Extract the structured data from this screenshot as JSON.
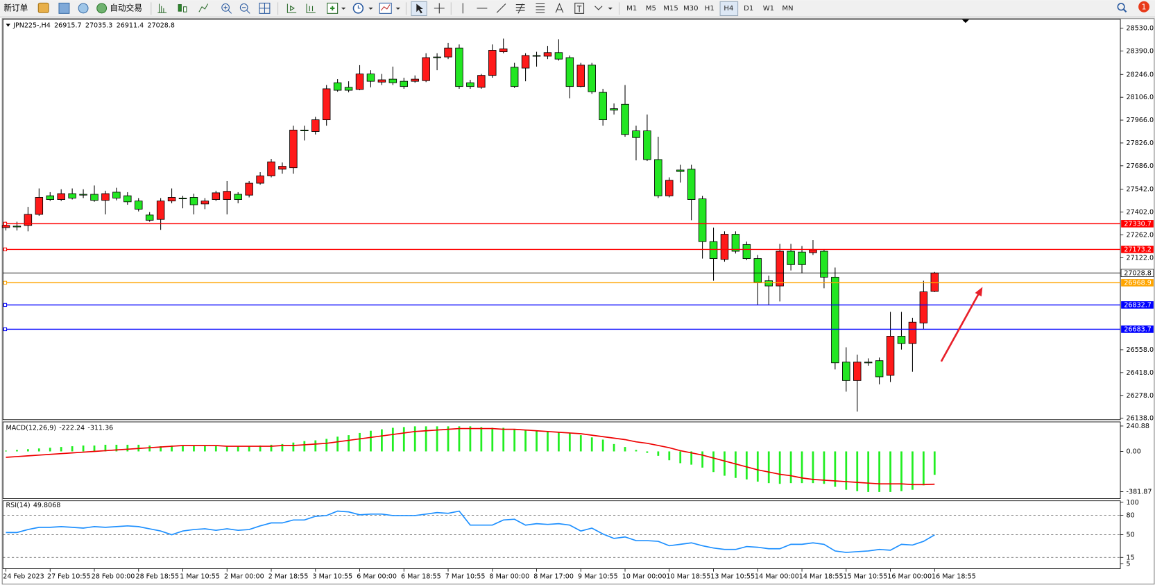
{
  "toolbar": {
    "new_order": "新订单",
    "auto_trading": "自动交易",
    "timeframes": [
      "M1",
      "M5",
      "M15",
      "M30",
      "H1",
      "H4",
      "D1",
      "W1",
      "MN"
    ],
    "notifications": 1
  },
  "chart_data": [
    {
      "type": "candlestick",
      "symbol": "JPN225-,H4",
      "up_color": "#ff1a1a",
      "down_color": "#22e622",
      "categories": [
        "24 Feb 2023",
        null,
        null,
        null,
        "27 Feb 10:55",
        null,
        null,
        null,
        "28 Feb 00:00",
        null,
        null,
        null,
        "28 Feb 18:55",
        null,
        null,
        null,
        "1 Mar 10:55",
        null,
        null,
        null,
        "2 Mar 00:00",
        null,
        null,
        null,
        "2 Mar 18:55",
        null,
        null,
        null,
        "3 Mar 10:55",
        null,
        null,
        null,
        "6 Mar 00:00",
        null,
        null,
        null,
        "6 Mar 18:55",
        null,
        null,
        null,
        "7 Mar 10:55",
        null,
        null,
        null,
        "8 Mar 00:00",
        null,
        null,
        null,
        "8 Mar 17:00",
        null,
        null,
        null,
        "9 Mar 10:55",
        null,
        null,
        null,
        "10 Mar 00:00",
        null,
        null,
        null,
        "10 Mar 18:55",
        null,
        null,
        null,
        "13 Mar 10:55",
        null,
        null,
        null,
        "14 Mar 00:00",
        null,
        null,
        null,
        "14 Mar 18:55",
        null,
        null,
        null,
        "15 Mar 10:55",
        null,
        null,
        null,
        "16 Mar 00:00",
        null,
        null,
        null,
        "16 Mar 18:55"
      ],
      "open": [
        27307,
        27316,
        27320,
        27388,
        27502,
        27479,
        27515,
        27511,
        27511,
        27474,
        27524,
        27502,
        27470,
        27384,
        27357,
        27470,
        27488,
        27492,
        27452,
        27479,
        27479,
        27511,
        27506,
        27579,
        27624,
        27665,
        27674,
        27905,
        27896,
        27968,
        28195,
        28167,
        28154,
        28249,
        28199,
        28217,
        28204,
        28204,
        28208,
        28353,
        28353,
        28408,
        28195,
        28167,
        28240,
        28385,
        28290,
        28285,
        28362,
        28358,
        28380,
        28349,
        28172,
        28303,
        28136,
        28036,
        28063,
        27900,
        27900,
        27724,
        27502,
        27660,
        27665,
        27483,
        27221,
        27112,
        27266,
        27203,
        27117,
        26981,
        26949,
        27162,
        27157,
        27153,
        27162,
        27003,
        26482,
        26369,
        26482,
        26491,
        26401,
        26641,
        26596,
        26722,
        26915.7
      ],
      "high": [
        27343,
        27343,
        27434,
        27547,
        27524,
        27542,
        27547,
        27542,
        27565,
        27533,
        27551,
        27524,
        27488,
        27402,
        27488,
        27547,
        27502,
        27515,
        27488,
        27533,
        27592,
        27524,
        27592,
        27647,
        27728,
        27706,
        27932,
        27932,
        27986,
        28181,
        28217,
        28204,
        28303,
        28272,
        28249,
        28294,
        28226,
        28240,
        28376,
        28376,
        28439,
        28430,
        28213,
        28249,
        28430,
        28466,
        28317,
        28376,
        28385,
        28421,
        28462,
        28362,
        28317,
        28317,
        28158,
        28068,
        28181,
        27932,
        28000,
        27864,
        27615,
        27692,
        27692,
        27502,
        27307,
        27284,
        27284,
        27221,
        27139,
        27012,
        27207,
        27207,
        27194,
        27230,
        27171,
        27062,
        26573,
        26528,
        26505,
        26510,
        26790,
        26790,
        26754,
        26981,
        27035.3
      ],
      "low": [
        27289,
        27289,
        27284,
        27379,
        27470,
        27470,
        27479,
        27488,
        27465,
        27388,
        27474,
        27447,
        27406,
        27343,
        27293,
        27456,
        27425,
        27388,
        27420,
        27470,
        27388,
        27456,
        27492,
        27570,
        27615,
        27637,
        27637,
        27841,
        27878,
        27932,
        28140,
        28136,
        28149,
        28167,
        28181,
        28181,
        28158,
        28195,
        28199,
        28272,
        28340,
        28158,
        28158,
        28158,
        28226,
        28376,
        28163,
        28204,
        28294,
        28340,
        28331,
        28100,
        28167,
        28127,
        27932,
        28000,
        27864,
        27719,
        27715,
        27488,
        27492,
        27583,
        27352,
        27117,
        26981,
        27098,
        27148,
        27107,
        26831,
        26831,
        26854,
        27044,
        27026,
        27139,
        26935,
        26437,
        26301,
        26179,
        26460,
        26346,
        26360,
        26559,
        26423,
        26686,
        26911.4
      ],
      "close": [
        27320,
        27311,
        27388,
        27492,
        27479,
        27515,
        27488,
        27506,
        27474,
        27515,
        27488,
        27465,
        27420,
        27352,
        27470,
        27492,
        27483,
        27447,
        27470,
        27520,
        27529,
        27479,
        27579,
        27624,
        27710,
        27683,
        27905,
        27900,
        27968,
        28158,
        28149,
        28149,
        28249,
        28204,
        28213,
        28195,
        28172,
        28217,
        28349,
        28349,
        28408,
        28172,
        28172,
        28240,
        28394,
        28403,
        28172,
        28362,
        28358,
        28380,
        28340,
        28172,
        28303,
        28140,
        27968,
        28027,
        27878,
        27859,
        27724,
        27502,
        27597,
        27651,
        27479,
        27221,
        27117,
        27266,
        27162,
        27117,
        26972,
        26949,
        27162,
        27080,
        27080,
        27171,
        27003,
        26478,
        26369,
        26482,
        26478,
        26392,
        26641,
        26596,
        26727,
        26913,
        27028.8
      ],
      "ylim": [
        26129,
        28584
      ],
      "yticks": [
        {
          "value": 28530,
          "label": "28530.0"
        },
        {
          "value": 28390,
          "label": "28390.0"
        },
        {
          "value": 28246,
          "label": "28246.0"
        },
        {
          "value": 28106,
          "label": "28106.0"
        },
        {
          "value": 27966,
          "label": "27966.0"
        },
        {
          "value": 27826,
          "label": "27826.0"
        },
        {
          "value": 27686,
          "label": "27686.0"
        },
        {
          "value": 27542,
          "label": "27542.0"
        },
        {
          "value": 27402,
          "label": "27402.0"
        },
        {
          "value": 27262,
          "label": "27262.0"
        },
        {
          "value": 27122,
          "label": "27122.0"
        },
        {
          "value": 26558,
          "label": "26558.0"
        },
        {
          "value": 26418,
          "label": "26418.0"
        },
        {
          "value": 26278,
          "label": "26278.0"
        },
        {
          "value": 26138,
          "label": "26138.0"
        }
      ],
      "levels": [
        {
          "value": 27330.7,
          "color": "#ff0000"
        },
        {
          "value": 27173.2,
          "color": "#ff0000"
        },
        {
          "value": 26968.9,
          "color": "#ffa500"
        },
        {
          "value": 26832.7,
          "color": "#0000ff"
        },
        {
          "value": 26683.7,
          "color": "#0000ff"
        }
      ],
      "grid": false
    },
    {
      "type": "macd",
      "title": "MACD(12,26,9)",
      "series": [
        {
          "color": "#22ee22",
          "values": [
            7,
            14,
            21,
            28,
            35,
            42,
            49,
            56,
            56,
            63,
            63,
            63,
            63,
            56,
            49,
            56,
            56,
            56,
            56,
            49,
            49,
            49,
            49,
            56,
            63,
            70,
            84,
            98,
            105,
            119,
            140,
            154,
            175,
            196,
            210,
            224,
            231,
            238,
            238,
            238,
            238,
            238,
            238,
            231,
            224,
            224,
            210,
            203,
            196,
            189,
            182,
            175,
            154,
            133,
            112,
            70,
            42,
            14,
            -14,
            -42,
            -84,
            -112,
            -126,
            -154,
            -196,
            -231,
            -252,
            -266,
            -287,
            -301,
            -308,
            -301,
            -301,
            -301,
            -308,
            -336,
            -364,
            -378,
            -385,
            -385,
            -385,
            -378,
            -364,
            -322,
            -222.24
          ]
        },
        {
          "color": "#ee0000",
          "values": [
            -56,
            -49,
            -42,
            -35,
            -28,
            -21,
            -14,
            -7,
            0,
            7,
            14,
            21,
            28,
            35,
            42,
            49,
            56,
            56,
            56,
            56,
            49,
            49,
            49,
            49,
            49,
            56,
            56,
            63,
            70,
            77,
            91,
            105,
            119,
            133,
            147,
            161,
            175,
            189,
            196,
            203,
            210,
            217,
            217,
            217,
            217,
            210,
            210,
            203,
            196,
            189,
            182,
            175,
            168,
            154,
            140,
            126,
            112,
            91,
            77,
            56,
            35,
            7,
            -14,
            -35,
            -63,
            -91,
            -119,
            -147,
            -175,
            -196,
            -217,
            -231,
            -252,
            -266,
            -273,
            -280,
            -287,
            -294,
            -301,
            -308,
            -308,
            -308,
            -315,
            -315,
            -311.36
          ]
        }
      ],
      "ylim": [
        -448,
        280
      ],
      "yticks": [
        240.88,
        {
          "value": 0,
          "label": "0.00"
        },
        -381.87
      ],
      "grid": false
    },
    {
      "type": "line",
      "title": "RSI(14)",
      "series": [
        {
          "color": "#1e90ff",
          "values": [
            53.4,
            53.4,
            58.0,
            61.4,
            61.4,
            62.5,
            61.4,
            60.2,
            62.5,
            61.4,
            62.5,
            63.6,
            62.5,
            59.1,
            55.7,
            50.0,
            55.7,
            58.0,
            59.1,
            56.8,
            59.1,
            56.8,
            58.0,
            63.6,
            68.2,
            68.2,
            72.7,
            72.7,
            78.4,
            79.5,
            86.4,
            85.2,
            80.7,
            81.8,
            81.8,
            79.5,
            79.5,
            79.5,
            81.8,
            84.1,
            83.0,
            86.4,
            64.8,
            64.8,
            64.8,
            72.7,
            73.9,
            64.8,
            67.0,
            65.9,
            67.0,
            64.8,
            55.7,
            60.2,
            51.1,
            44.3,
            46.6,
            40.9,
            40.9,
            39.8,
            33.0,
            35.2,
            37.5,
            33.0,
            29.5,
            27.3,
            27.3,
            31.8,
            30.7,
            28.4,
            28.4,
            35.2,
            35.2,
            37.5,
            35.2,
            25.0,
            22.7,
            23.9,
            25.0,
            27.3,
            26.1,
            35.2,
            34.1,
            39.8,
            49.8068
          ]
        }
      ],
      "ylim": [
        0,
        100
      ],
      "yticks": [
        100,
        80,
        50,
        15,
        5
      ],
      "grid": true
    }
  ]
}
